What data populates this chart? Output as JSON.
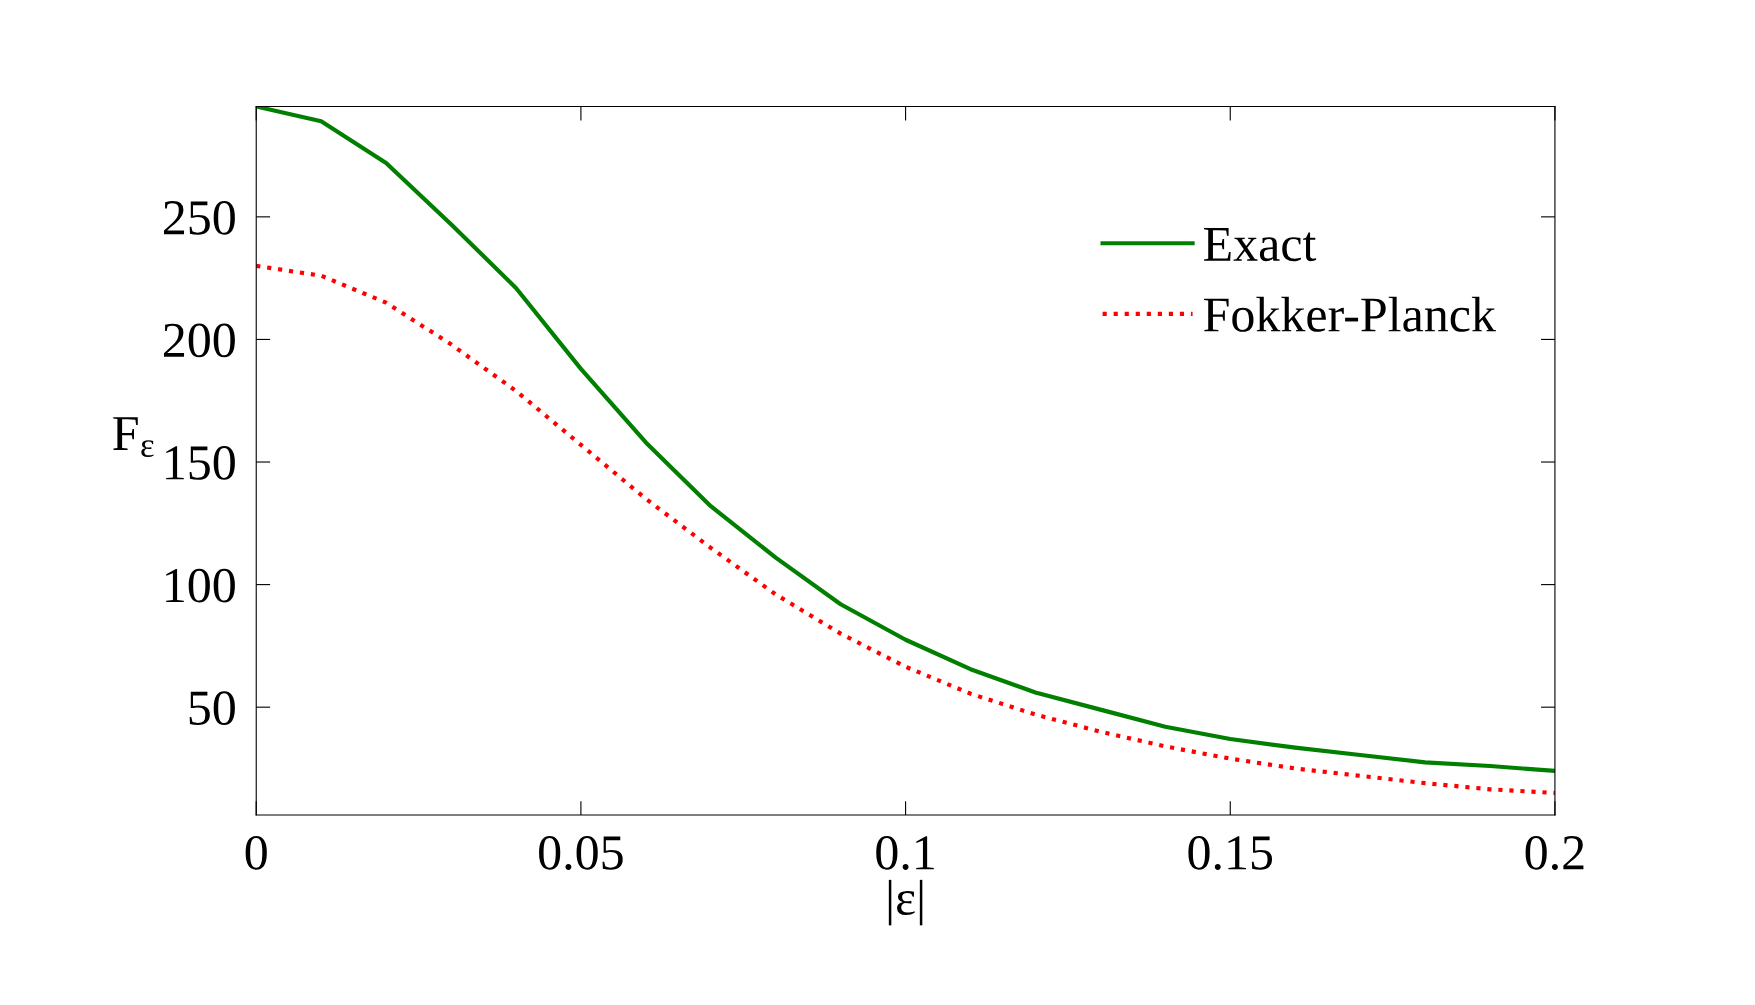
{
  "chart_data": {
    "type": "line",
    "xlabel": "|ε|",
    "ylabel": "F$_{ε}$",
    "x": [
      0,
      0.01,
      0.02,
      0.03,
      0.04,
      0.05,
      0.06,
      0.07,
      0.08,
      0.09,
      0.1,
      0.11,
      0.12,
      0.13,
      0.14,
      0.15,
      0.16,
      0.17,
      0.18,
      0.19,
      0.2
    ],
    "series": [
      {
        "name": "Exact",
        "color": "#007f00",
        "line_style": "solid",
        "values": [
          295,
          289,
          272,
          247,
          221,
          188,
          158,
          132,
          111,
          92,
          77.5,
          65.5,
          56,
          49,
          42,
          37,
          33.5,
          30.5,
          27.5,
          26,
          24
        ]
      },
      {
        "name": "Fokker-Planck",
        "color": "#ff0000",
        "line_style": "dotted",
        "values": [
          230,
          226,
          215,
          198,
          179,
          157,
          135,
          115,
          96,
          80,
          66.5,
          55.5,
          47,
          40,
          34,
          29,
          25,
          22,
          19,
          16.5,
          15
        ]
      }
    ],
    "xlim": [
      0,
      0.2
    ],
    "xticks": [
      0,
      0.05,
      0.1,
      0.15,
      0.2
    ],
    "ylim": [
      6,
      295
    ],
    "yticks": [
      50,
      100,
      150,
      200,
      250
    ],
    "grid": false,
    "legend": "top right",
    "marker": "none"
  }
}
